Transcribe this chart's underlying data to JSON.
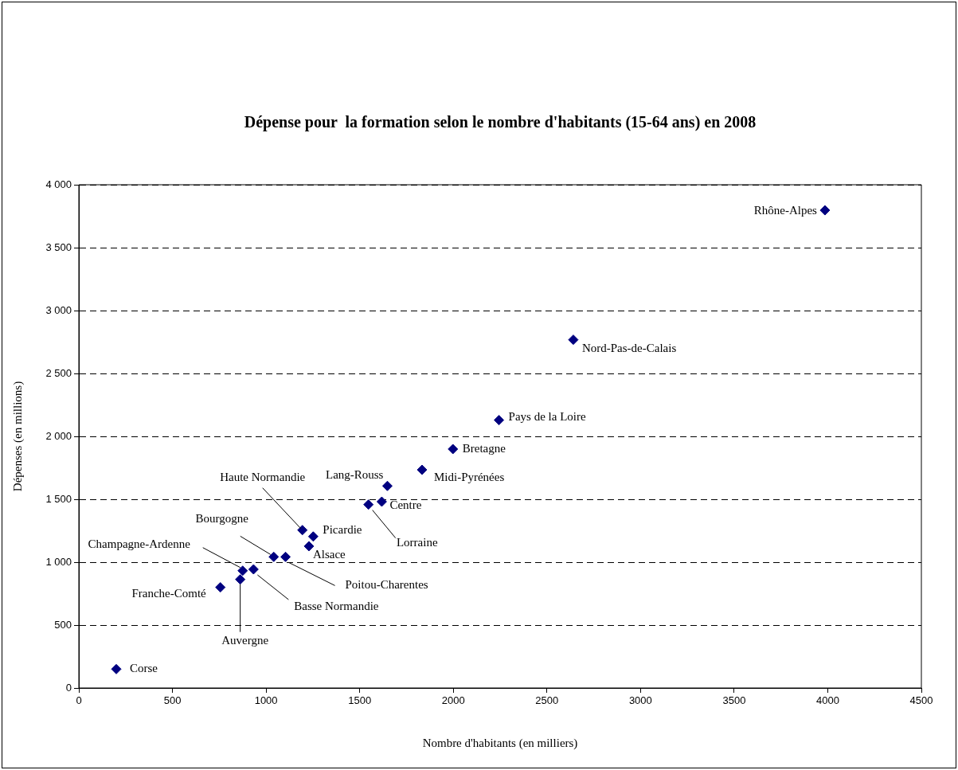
{
  "chart_data": {
    "type": "scatter",
    "title": "Dépense pour  la formation selon le nombre d'habitants (15-64 ans) en 2008",
    "xlabel": "Nombre d'habitants (en milliers)",
    "ylabel": "Dépenses (en millions)",
    "series": [
      {
        "color": "#000080",
        "x": [
          200,
          756,
          862,
          875,
          933,
          1041,
          1104,
          1194,
          1252,
          1229,
          1547,
          1618,
          1648,
          1833,
          1998,
          2244,
          2641,
          3985
        ],
        "values": [
          150,
          800,
          863,
          932,
          943,
          1042,
          1042,
          1255,
          1204,
          1127,
          1458,
          1481,
          1606,
          1734,
          1899,
          2129,
          2768,
          3797
        ]
      }
    ],
    "annotations": [
      {
        "text": "Corse",
        "x": 200,
        "y": 150
      },
      {
        "text": "Franche-Comté",
        "x": 756,
        "y": 800
      },
      {
        "text": "Auvergne",
        "x": 862,
        "y": 863
      },
      {
        "text": "Champagne-Ardenne",
        "x": 875,
        "y": 932
      },
      {
        "text": "Basse Normandie",
        "x": 933,
        "y": 943
      },
      {
        "text": "Bourgogne",
        "x": 1041,
        "y": 1042
      },
      {
        "text": "Poitou-Charentes",
        "x": 1104,
        "y": 1042
      },
      {
        "text": "Haute Normandie",
        "x": 1194,
        "y": 1255
      },
      {
        "text": "Picardie",
        "x": 1252,
        "y": 1204
      },
      {
        "text": "Alsace",
        "x": 1229,
        "y": 1127
      },
      {
        "text": "Lorraine",
        "x": 1547,
        "y": 1458
      },
      {
        "text": "Centre",
        "x": 1618,
        "y": 1481
      },
      {
        "text": "Lang-Rouss",
        "x": 1648,
        "y": 1606
      },
      {
        "text": "Midi-Pyrénées",
        "x": 1833,
        "y": 1734
      },
      {
        "text": "Bretagne",
        "x": 1998,
        "y": 1899
      },
      {
        "text": "Pays de la Loire",
        "x": 2244,
        "y": 2129
      },
      {
        "text": "Nord-Pas-de-Calais",
        "x": 2641,
        "y": 2768
      },
      {
        "text": "Rhône-Alpes",
        "x": 3985,
        "y": 3797
      }
    ],
    "xlim": [
      0,
      4500
    ],
    "xticks": [
      0,
      500,
      1000,
      1500,
      2000,
      2500,
      3000,
      3500,
      4000,
      4500
    ],
    "ylim": [
      0,
      4000
    ],
    "yticks": [
      0,
      500,
      {
        "value": 1000,
        "label": "1 000"
      },
      {
        "value": 1500,
        "label": "1 500"
      },
      {
        "value": 2000,
        "label": "2 000"
      },
      {
        "value": 2500,
        "label": "2 500"
      },
      {
        "value": 3000,
        "label": "3 000"
      },
      {
        "value": 3500,
        "label": "3 500"
      },
      {
        "value": 4000,
        "label": "4 000"
      }
    ],
    "grid": "y",
    "marker": "diamond",
    "legend": false
  }
}
